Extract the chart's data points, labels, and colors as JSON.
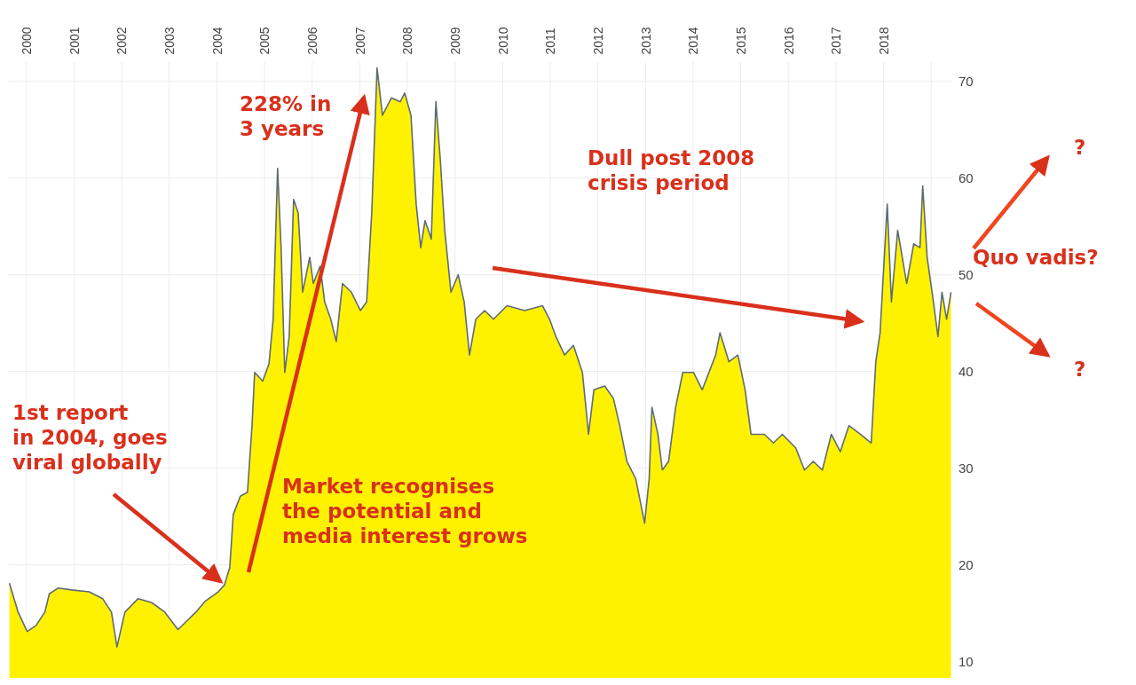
{
  "chart_data": {
    "type": "area",
    "x": [
      "1999-08-24",
      "1999-10-30",
      "2000-01-07",
      "2000-03-14",
      "2000-05-22",
      "2000-06-25",
      "2000-09-02",
      "2000-12-13",
      "2001-04-28",
      "2001-08-08",
      "2001-10-15",
      "2001-11-26",
      "2002-01-26",
      "2002-05-07",
      "2002-08-18",
      "2002-11-28",
      "2003-03-09",
      "2003-05-16",
      "2003-07-24",
      "2003-10-01",
      "2004-01-11",
      "2004-02-28",
      "2004-04-09",
      "2004-05-06",
      "2004-06-29",
      "2004-08-23",
      "2004-09-27",
      "2004-10-17",
      "2004-12-18",
      "2005-02-04",
      "2005-03-08",
      "2005-04-11",
      "2005-05-08",
      "2005-06-05",
      "2005-07-09",
      "2005-08-12",
      "2005-09-16",
      "2005-10-20",
      "2005-12-13",
      "2006-01-10",
      "2006-03-04",
      "2006-04-07",
      "2006-05-24",
      "2006-07-05",
      "2006-08-22",
      "2006-10-29",
      "2007-01-06",
      "2007-02-23",
      "2007-04-03",
      "2007-05-14",
      "2007-06-24",
      "2007-09-01",
      "2007-11-08",
      "2007-12-12",
      "2008-01-29",
      "2008-03-09",
      "2008-04-13",
      "2008-05-16",
      "2008-07-03",
      "2008-08-07",
      "2008-09-10",
      "2008-10-14",
      "2008-12-01",
      "2009-01-25",
      "2009-03-12",
      "2009-04-22",
      "2009-06-09",
      "2009-08-16",
      "2009-10-23",
      "2010-02-04",
      "2010-06-19",
      "2010-11-03",
      "2010-12-27",
      "2011-02-14",
      "2011-04-21",
      "2011-06-28",
      "2011-09-05",
      "2011-10-22",
      "2011-12-02",
      "2012-02-23",
      "2012-04-30",
      "2012-06-17",
      "2012-08-11",
      "2012-10-18",
      "2012-12-25",
      "2013-01-29",
      "2013-02-19",
      "2013-04-06",
      "2013-05-10",
      "2013-06-27",
      "2013-08-20",
      "2013-10-14",
      "2014-01-04",
      "2014-03-12",
      "2014-06-23",
      "2014-07-26",
      "2014-10-03",
      "2014-12-10",
      "2015-02-04",
      "2015-03-21",
      "2015-07-02",
      "2015-09-09",
      "2015-11-16",
      "2016-02-27",
      "2016-05-04",
      "2016-07-11",
      "2016-09-18",
      "2016-11-26",
      "2017-02-03",
      "2017-04-10",
      "2017-07-07",
      "2017-09-28",
      "2017-11-02",
      "2017-12-05",
      "2018-01-29",
      "2018-03-02",
      "2018-04-19",
      "2018-06-27",
      "2018-08-20",
      "2018-10-07",
      "2018-10-28",
      "2018-12-01",
      "2019-01-18",
      "2019-02-22",
      "2019-03-25",
      "2019-04-29",
      "2019-06-02"
    ],
    "series": [
      {
        "color": "#fff200",
        "values": [
          18.1,
          15.1,
          13.1,
          13.7,
          15.1,
          17,
          17.6,
          17.4,
          17.2,
          16.5,
          15.1,
          11.5,
          15.1,
          16.5,
          16.1,
          15.1,
          13.3,
          14.2,
          15.1,
          16.2,
          17.2,
          17.9,
          19.7,
          25.2,
          27.1,
          27.5,
          34.4,
          39.9,
          39,
          40.8,
          45.4,
          61,
          52.8,
          39.9,
          43.6,
          57.8,
          56.4,
          48.2,
          51.8,
          49.1,
          50.9,
          47.2,
          45.4,
          43.1,
          49.1,
          48.2,
          46.3,
          47.2,
          56.4,
          71.4,
          66.5,
          68.3,
          67.9,
          68.8,
          66.5,
          57.3,
          52.8,
          55.6,
          53.7,
          67.9,
          61.9,
          54.6,
          48.2,
          50,
          47.2,
          41.7,
          45.4,
          46.3,
          45.4,
          46.8,
          46.3,
          46.8,
          45.4,
          43.6,
          41.7,
          42.7,
          39.9,
          33.5,
          38.1,
          38.5,
          37.2,
          34.4,
          30.7,
          28.9,
          24.3,
          28.9,
          36.3,
          33.5,
          29.8,
          30.7,
          36.3,
          39.9,
          39.9,
          38.1,
          41.7,
          44,
          41,
          41.7,
          38.1,
          33.5,
          33.5,
          32.6,
          33.5,
          32.1,
          29.8,
          30.7,
          29.8,
          33.5,
          31.7,
          34.4,
          33.5,
          32.6,
          41,
          44,
          57.3,
          47.2,
          54.6,
          49.1,
          53.2,
          52.8,
          59.2,
          51.8,
          47.2,
          43.6,
          48.2,
          45.4,
          48.2
        ]
      }
    ],
    "xlim": [
      "1999-08-20",
      "2019-06-05"
    ],
    "ylim": [
      8.3,
      72
    ],
    "xticks": [
      {
        "value": "2000-01-01",
        "label": "2000"
      },
      {
        "value": "2001-01-01",
        "label": "2001"
      },
      {
        "value": "2002-01-01",
        "label": "2002"
      },
      {
        "value": "2003-01-01",
        "label": "2003"
      },
      {
        "value": "2004-01-01",
        "label": "2004"
      },
      {
        "value": "2005-01-01",
        "label": "2005"
      },
      {
        "value": "2006-01-01",
        "label": "2006"
      },
      {
        "value": "2007-01-01",
        "label": "2007"
      },
      {
        "value": "2008-01-01",
        "label": "2008"
      },
      {
        "value": "2009-01-01",
        "label": "2009"
      },
      {
        "value": "2010-01-01",
        "label": "2010"
      },
      {
        "value": "2011-01-01",
        "label": "2011"
      },
      {
        "value": "2012-01-01",
        "label": "2012"
      },
      {
        "value": "2013-01-01",
        "label": "2013"
      },
      {
        "value": "2014-01-01",
        "label": "2014"
      },
      {
        "value": "2015-01-01",
        "label": "2015"
      },
      {
        "value": "2016-01-01",
        "label": "2016"
      },
      {
        "value": "2017-01-01",
        "label": "2017"
      },
      {
        "value": "2018-01-01",
        "label": "2018"
      },
      {
        "value": "2019-01-01",
        "label": null
      }
    ],
    "yticks": [
      10,
      20,
      30,
      40,
      50,
      60,
      70
    ],
    "grid": true,
    "annotations": [
      "228% in\n3 years",
      "1st report\nin 2004, goes\nviral globally",
      "Market recognises\nthe potential and\nmedia interest grows",
      "Dull post 2008\ncrisis period",
      "Quo vadis?",
      "?",
      "?"
    ]
  }
}
